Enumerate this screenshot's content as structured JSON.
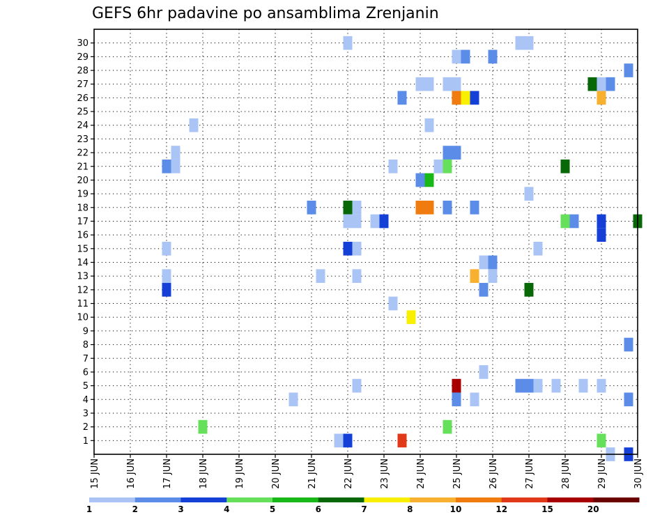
{
  "chart_data": {
    "type": "heatmap",
    "title": "GEFS 6hr padavine po ansamblima Zrenjanin",
    "xlabel": "",
    "ylabel": "",
    "x_ticks": [
      "15 JUN",
      "16 JUN",
      "17 JUN",
      "18 JUN",
      "19 JUN",
      "20 JUN",
      "21 JUN",
      "22 JUN",
      "23 JUN",
      "24 JUN",
      "25 JUN",
      "26 JUN",
      "27 JUN",
      "28 JUN",
      "29 JUN",
      "30 JUN"
    ],
    "y_ticks": [
      "1",
      "2",
      "3",
      "4",
      "5",
      "6",
      "7",
      "8",
      "9",
      "10",
      "11",
      "12",
      "13",
      "14",
      "15",
      "16",
      "17",
      "18",
      "19",
      "20",
      "21",
      "22",
      "23",
      "24",
      "25",
      "26",
      "27",
      "28",
      "29",
      "30"
    ],
    "xlim": [
      0,
      60
    ],
    "ylim": [
      0,
      30
    ],
    "grid": true,
    "colorbar": {
      "labels": [
        "1",
        "2",
        "3",
        "4",
        "5",
        "6",
        "7",
        "8",
        "10",
        "12",
        "15",
        "20"
      ],
      "colors": [
        "#a9c4f5",
        "#5b8ce8",
        "#1440d8",
        "#66e05a",
        "#18b818",
        "#086808",
        "#f8f000",
        "#f8b030",
        "#f07c10",
        "#e03818",
        "#a80000",
        "#6a0000"
      ]
    },
    "cells": [
      {
        "t": 28,
        "m": 30,
        "c": 0
      },
      {
        "t": 47,
        "m": 30,
        "c": 0
      },
      {
        "t": 48,
        "m": 30,
        "c": 0
      },
      {
        "t": 40,
        "m": 29,
        "c": 0
      },
      {
        "t": 41,
        "m": 29,
        "c": 1
      },
      {
        "t": 44,
        "m": 29,
        "c": 1
      },
      {
        "t": 59,
        "m": 28,
        "c": 1
      },
      {
        "t": 36,
        "m": 27,
        "c": 0
      },
      {
        "t": 37,
        "m": 27,
        "c": 0
      },
      {
        "t": 40,
        "m": 27,
        "c": 0
      },
      {
        "t": 39,
        "m": 27,
        "c": 0
      },
      {
        "t": 55,
        "m": 27,
        "c": 5
      },
      {
        "t": 56,
        "m": 27,
        "c": 0
      },
      {
        "t": 57,
        "m": 27,
        "c": 1
      },
      {
        "t": 34,
        "m": 26,
        "c": 1
      },
      {
        "t": 40,
        "m": 26,
        "c": 8
      },
      {
        "t": 41,
        "m": 26,
        "c": 6
      },
      {
        "t": 42,
        "m": 26,
        "c": 2
      },
      {
        "t": 56,
        "m": 26,
        "c": 7
      },
      {
        "t": 11,
        "m": 24,
        "c": 0
      },
      {
        "t": 37,
        "m": 24,
        "c": 0
      },
      {
        "t": 9,
        "m": 22,
        "c": 0
      },
      {
        "t": 39,
        "m": 22,
        "c": 1
      },
      {
        "t": 40,
        "m": 22,
        "c": 1
      },
      {
        "t": 8,
        "m": 21,
        "c": 1
      },
      {
        "t": 9,
        "m": 21,
        "c": 0
      },
      {
        "t": 33,
        "m": 21,
        "c": 0
      },
      {
        "t": 38,
        "m": 21,
        "c": 0
      },
      {
        "t": 39,
        "m": 21,
        "c": 3
      },
      {
        "t": 52,
        "m": 21,
        "c": 5
      },
      {
        "t": 36,
        "m": 20,
        "c": 1
      },
      {
        "t": 37,
        "m": 20,
        "c": 4
      },
      {
        "t": 48,
        "m": 19,
        "c": 0
      },
      {
        "t": 24,
        "m": 18,
        "c": 1
      },
      {
        "t": 28,
        "m": 18,
        "c": 5
      },
      {
        "t": 29,
        "m": 18,
        "c": 0
      },
      {
        "t": 36,
        "m": 18,
        "c": 8
      },
      {
        "t": 37,
        "m": 18,
        "c": 8
      },
      {
        "t": 39,
        "m": 18,
        "c": 1
      },
      {
        "t": 42,
        "m": 18,
        "c": 1
      },
      {
        "t": 28,
        "m": 17,
        "c": 0
      },
      {
        "t": 29,
        "m": 17,
        "c": 0
      },
      {
        "t": 31,
        "m": 17,
        "c": 0
      },
      {
        "t": 32,
        "m": 17,
        "c": 2
      },
      {
        "t": 52,
        "m": 17,
        "c": 3
      },
      {
        "t": 53,
        "m": 17,
        "c": 1
      },
      {
        "t": 56,
        "m": 17,
        "c": 2
      },
      {
        "t": 60,
        "m": 17,
        "c": 5
      },
      {
        "t": 56,
        "m": 16,
        "c": 2
      },
      {
        "t": 8,
        "m": 15,
        "c": 0
      },
      {
        "t": 28,
        "m": 15,
        "c": 2
      },
      {
        "t": 29,
        "m": 15,
        "c": 0
      },
      {
        "t": 49,
        "m": 15,
        "c": 0
      },
      {
        "t": 43,
        "m": 14,
        "c": 0
      },
      {
        "t": 44,
        "m": 14,
        "c": 1
      },
      {
        "t": 44,
        "m": 13,
        "c": 0
      },
      {
        "t": 8,
        "m": 13,
        "c": 0
      },
      {
        "t": 25,
        "m": 13,
        "c": 0
      },
      {
        "t": 29,
        "m": 13,
        "c": 0
      },
      {
        "t": 42,
        "m": 13,
        "c": 7
      },
      {
        "t": 8,
        "m": 12,
        "c": 2
      },
      {
        "t": 43,
        "m": 12,
        "c": 1
      },
      {
        "t": 48,
        "m": 12,
        "c": 5
      },
      {
        "t": 33,
        "m": 11,
        "c": 0
      },
      {
        "t": 35,
        "m": 10,
        "c": 6
      },
      {
        "t": 59,
        "m": 8,
        "c": 1
      },
      {
        "t": 43,
        "m": 6,
        "c": 0
      },
      {
        "t": 29,
        "m": 5,
        "c": 0
      },
      {
        "t": 56,
        "m": 5,
        "c": 0
      },
      {
        "t": 40,
        "m": 5,
        "c": 10
      },
      {
        "t": 40,
        "m": 4,
        "c": 1
      },
      {
        "t": 42,
        "m": 4,
        "c": 0
      },
      {
        "t": 47,
        "m": 5,
        "c": 1
      },
      {
        "t": 48,
        "m": 5,
        "c": 1
      },
      {
        "t": 49,
        "m": 5,
        "c": 0
      },
      {
        "t": 51,
        "m": 5,
        "c": 0
      },
      {
        "t": 54,
        "m": 5,
        "c": 0
      },
      {
        "t": 22,
        "m": 4,
        "c": 0
      },
      {
        "t": 59,
        "m": 4,
        "c": 1
      },
      {
        "t": 12,
        "m": 2,
        "c": 3
      },
      {
        "t": 39,
        "m": 2,
        "c": 3
      },
      {
        "t": 27,
        "m": 1,
        "c": 0
      },
      {
        "t": 28,
        "m": 1,
        "c": 2
      },
      {
        "t": 34,
        "m": 1,
        "c": 9
      },
      {
        "t": 56,
        "m": 1,
        "c": 3
      },
      {
        "t": 57,
        "m": 0,
        "c": 0
      },
      {
        "t": 59,
        "m": 0,
        "c": 2
      }
    ]
  }
}
